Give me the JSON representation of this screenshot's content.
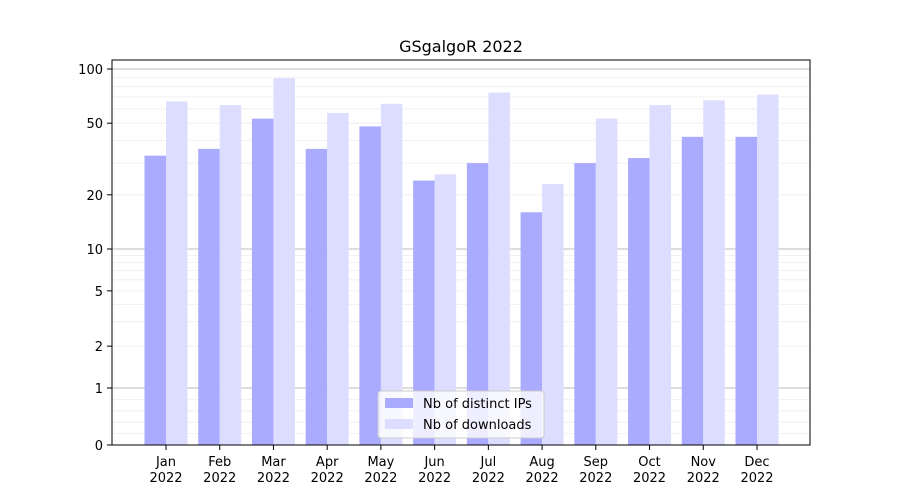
{
  "chart_data": {
    "type": "bar",
    "title": "GSgalgoR 2022",
    "xlabel": "",
    "ylabel": "",
    "yscale": "symlog",
    "ylim": [
      0,
      110
    ],
    "yticks": [
      0,
      1,
      2,
      5,
      10,
      20,
      50,
      100
    ],
    "ytick_labels": [
      "0",
      "1",
      "2",
      "5",
      "10",
      "20",
      "50",
      "100"
    ],
    "categories": [
      "Jan\n2022",
      "Feb\n2022",
      "Mar\n2022",
      "Apr\n2022",
      "May\n2022",
      "Jun\n2022",
      "Jul\n2022",
      "Aug\n2022",
      "Sep\n2022",
      "Oct\n2022",
      "Nov\n2022",
      "Dec\n2022"
    ],
    "series": [
      {
        "name": "Nb of distinct IPs",
        "color": "#aaaaff",
        "values": [
          33,
          36,
          53,
          36,
          48,
          24,
          30,
          16,
          30,
          32,
          42,
          42
        ]
      },
      {
        "name": "Nb of downloads",
        "color": "#ddddff",
        "values": [
          66,
          63,
          89,
          57,
          64,
          26,
          74,
          23,
          53,
          63,
          67,
          72
        ]
      }
    ],
    "legend_position": "lower-center",
    "grid": true
  }
}
